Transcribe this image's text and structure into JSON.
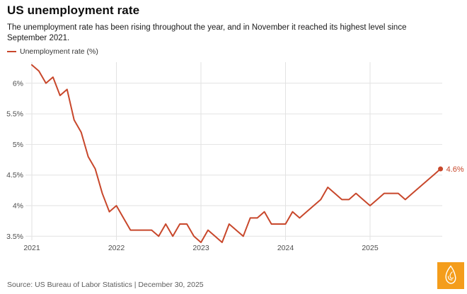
{
  "header": {
    "title": "US unemployment rate",
    "subtitle": "The unemployment rate has been rising throughout the year, and in November it reached its highest level since September 2021."
  },
  "legend": {
    "swatch_color": "#c8472b",
    "label": "Unemployment rate (%)"
  },
  "chart_data": {
    "type": "line",
    "title": "US unemployment rate",
    "x_start": "2021-01",
    "x_end": "2025-11",
    "x_frequency": "monthly",
    "x_tick_labels": [
      "2021",
      "2022",
      "2023",
      "2024",
      "2025"
    ],
    "y_ticks": [
      6,
      5.5,
      5,
      4.5,
      4,
      3.5
    ],
    "y_tick_labels": [
      "6%",
      "5.5%",
      "5%",
      "4.5%",
      "4%",
      "3.5%"
    ],
    "ylim": [
      3.3,
      6.45
    ],
    "grid": true,
    "legend_position": "top-left",
    "line_color": "#c8472b",
    "end_label": "4.6%",
    "series": [
      {
        "name": "Unemployment rate (%)",
        "values": [
          6.3,
          6.2,
          6.0,
          6.1,
          5.8,
          5.9,
          5.4,
          5.2,
          4.8,
          4.6,
          4.2,
          3.9,
          4.0,
          3.8,
          3.6,
          3.6,
          3.6,
          3.6,
          3.5,
          3.7,
          3.5,
          3.7,
          3.7,
          3.5,
          3.4,
          3.6,
          3.5,
          3.4,
          3.7,
          3.6,
          3.5,
          3.8,
          3.8,
          3.9,
          3.7,
          3.7,
          3.7,
          3.9,
          3.8,
          3.9,
          4.0,
          4.1,
          4.3,
          4.2,
          4.1,
          4.1,
          4.2,
          4.1,
          4.0,
          4.1,
          4.2,
          4.2,
          4.2,
          4.1,
          4.2,
          4.3,
          4.4,
          4.5,
          4.6
        ]
      }
    ]
  },
  "footer": {
    "source": "Source: US Bureau of Labor Statistics | December 30, 2025"
  },
  "logo": {
    "name": "Al Jazeera",
    "background_color": "#f49d1b"
  }
}
